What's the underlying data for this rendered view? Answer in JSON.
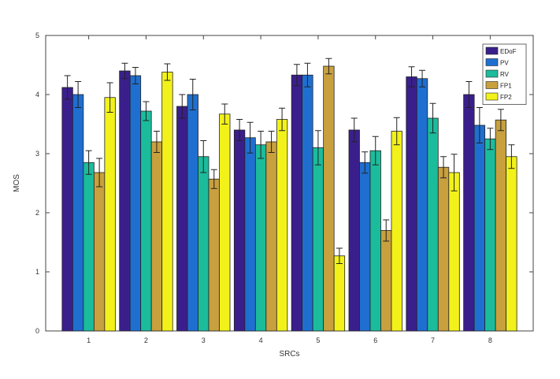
{
  "chart_data": {
    "type": "bar",
    "xlabel": "SRCs",
    "ylabel": "MOS",
    "ylim": [
      0,
      5
    ],
    "yticks": [
      0,
      1,
      2,
      3,
      4,
      5
    ],
    "categories": [
      "1",
      "2",
      "3",
      "4",
      "5",
      "6",
      "7",
      "8"
    ],
    "legend_position": "top-right",
    "grid": false,
    "series": [
      {
        "name": "EDoF",
        "color": "#3a1f8c",
        "values": [
          4.12,
          4.4,
          3.8,
          3.4,
          4.33,
          3.4,
          4.3,
          4.0
        ],
        "errors": [
          0.2,
          0.13,
          0.2,
          0.18,
          0.18,
          0.2,
          0.17,
          0.22
        ]
      },
      {
        "name": "PV",
        "color": "#1f6fd1",
        "values": [
          4.0,
          4.32,
          4.0,
          3.27,
          4.33,
          2.85,
          4.27,
          3.48
        ],
        "errors": [
          0.22,
          0.14,
          0.26,
          0.26,
          0.2,
          0.18,
          0.14,
          0.3
        ]
      },
      {
        "name": "RV",
        "color": "#1bbc9c",
        "values": [
          2.85,
          3.72,
          2.95,
          3.15,
          3.1,
          3.05,
          3.6,
          3.25
        ],
        "errors": [
          0.2,
          0.16,
          0.27,
          0.23,
          0.29,
          0.24,
          0.25,
          0.18
        ]
      },
      {
        "name": "FP1",
        "color": "#c8a03e",
        "values": [
          2.68,
          3.2,
          2.57,
          3.2,
          4.48,
          1.7,
          2.77,
          3.57
        ],
        "errors": [
          0.24,
          0.18,
          0.16,
          0.18,
          0.13,
          0.18,
          0.18,
          0.18
        ]
      },
      {
        "name": "FP2",
        "color": "#f2f21a",
        "values": [
          3.95,
          4.38,
          3.67,
          3.58,
          1.27,
          3.38,
          2.68,
          2.95
        ],
        "errors": [
          0.25,
          0.14,
          0.17,
          0.19,
          0.13,
          0.23,
          0.31,
          0.2
        ]
      }
    ]
  }
}
